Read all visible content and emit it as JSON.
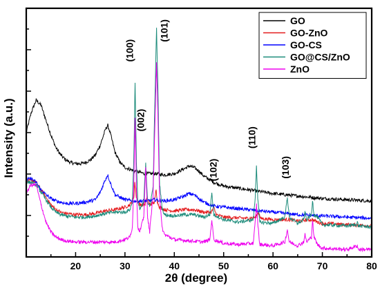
{
  "chart_data": {
    "type": "line",
    "xlabel": "2θ (degree)",
    "ylabel": "Intensity (a.u.)",
    "xlim": [
      10,
      80
    ],
    "ylim": [
      0,
      100
    ],
    "x_ticks": [
      20,
      30,
      40,
      50,
      60,
      70,
      80
    ],
    "y_tick_labels_shown": false,
    "legend_position": "top-right",
    "series": [
      {
        "name": "GO",
        "color": "#000000",
        "points": [
          [
            10,
            50
          ],
          [
            11,
            58
          ],
          [
            12,
            63
          ],
          [
            13,
            61
          ],
          [
            14,
            55
          ],
          [
            15,
            49
          ],
          [
            16,
            44
          ],
          [
            17,
            41
          ],
          [
            18,
            39
          ],
          [
            19,
            38
          ],
          [
            20,
            37.5
          ],
          [
            21,
            37.5
          ],
          [
            22,
            38
          ],
          [
            23,
            39
          ],
          [
            24,
            41
          ],
          [
            25,
            45
          ],
          [
            26,
            51
          ],
          [
            26.5,
            53
          ],
          [
            27,
            50
          ],
          [
            28,
            42
          ],
          [
            29,
            38
          ],
          [
            30,
            36
          ],
          [
            32,
            34.5
          ],
          [
            34,
            33.5
          ],
          [
            36,
            33.5
          ],
          [
            38,
            33
          ],
          [
            40,
            33.5
          ],
          [
            42,
            35.5
          ],
          [
            43,
            36.5
          ],
          [
            44,
            36
          ],
          [
            45,
            34.5
          ],
          [
            46,
            32.5
          ],
          [
            48,
            30
          ],
          [
            50,
            28.5
          ],
          [
            55,
            27
          ],
          [
            60,
            25.5
          ],
          [
            65,
            24.5
          ],
          [
            70,
            23.5
          ],
          [
            75,
            23
          ],
          [
            80,
            22.5
          ]
        ]
      },
      {
        "name": "GO-ZnO",
        "color": "#e41a1c",
        "points": [
          [
            10,
            30
          ],
          [
            11,
            31
          ],
          [
            12,
            30
          ],
          [
            13,
            27
          ],
          [
            14,
            24
          ],
          [
            15,
            21
          ],
          [
            16,
            19
          ],
          [
            17,
            18
          ],
          [
            18,
            17.5
          ],
          [
            20,
            17
          ],
          [
            22,
            17
          ],
          [
            24,
            17.5
          ],
          [
            26,
            18.5
          ],
          [
            28,
            19
          ],
          [
            30,
            20
          ],
          [
            31,
            21
          ],
          [
            31.8,
            24
          ],
          [
            32,
            30
          ],
          [
            32.3,
            24
          ],
          [
            33,
            21
          ],
          [
            34,
            21
          ],
          [
            34.5,
            24
          ],
          [
            35,
            21
          ],
          [
            36,
            22
          ],
          [
            36.3,
            27
          ],
          [
            36.6,
            22
          ],
          [
            37,
            20
          ],
          [
            38,
            19
          ],
          [
            40,
            18.5
          ],
          [
            42,
            19
          ],
          [
            44,
            19
          ],
          [
            46,
            18
          ],
          [
            47.5,
            18
          ],
          [
            48,
            20
          ],
          [
            48.5,
            17
          ],
          [
            50,
            16
          ],
          [
            55,
            15.5
          ],
          [
            56.5,
            16
          ],
          [
            57,
            18
          ],
          [
            57.5,
            15.5
          ],
          [
            60,
            15
          ],
          [
            63,
            15
          ],
          [
            65,
            14.5
          ],
          [
            68,
            15
          ],
          [
            69,
            14
          ],
          [
            70,
            13.5
          ],
          [
            75,
            13
          ],
          [
            80,
            12.5
          ]
        ]
      },
      {
        "name": "GO-CS",
        "color": "#0000ff",
        "points": [
          [
            10,
            31
          ],
          [
            11,
            31.5
          ],
          [
            12,
            30
          ],
          [
            13,
            27
          ],
          [
            14,
            25
          ],
          [
            15,
            23.5
          ],
          [
            16,
            22.5
          ],
          [
            17,
            22
          ],
          [
            18,
            21.5
          ],
          [
            20,
            21.5
          ],
          [
            22,
            22
          ],
          [
            24,
            23
          ],
          [
            25,
            26
          ],
          [
            26,
            31
          ],
          [
            26.5,
            33
          ],
          [
            27,
            30
          ],
          [
            28,
            25
          ],
          [
            30,
            23
          ],
          [
            32,
            22.5
          ],
          [
            34,
            22.5
          ],
          [
            36,
            23
          ],
          [
            38,
            22.5
          ],
          [
            40,
            23
          ],
          [
            42,
            24.5
          ],
          [
            43,
            25.5
          ],
          [
            44,
            25
          ],
          [
            45,
            23.5
          ],
          [
            46,
            22
          ],
          [
            48,
            20.5
          ],
          [
            50,
            20
          ],
          [
            55,
            19
          ],
          [
            60,
            18
          ],
          [
            65,
            17
          ],
          [
            70,
            16.5
          ],
          [
            75,
            16
          ],
          [
            80,
            15.5
          ]
        ]
      },
      {
        "name": "GO@CS/ZnO",
        "color": "#1b8b7a",
        "points": [
          [
            10,
            30
          ],
          [
            11,
            30
          ],
          [
            12,
            29
          ],
          [
            13,
            26
          ],
          [
            14,
            23
          ],
          [
            15,
            20
          ],
          [
            16,
            18
          ],
          [
            17,
            17
          ],
          [
            18,
            16.5
          ],
          [
            20,
            16
          ],
          [
            22,
            16
          ],
          [
            24,
            16.5
          ],
          [
            26,
            17.5
          ],
          [
            28,
            18
          ],
          [
            30,
            18
          ],
          [
            31,
            19
          ],
          [
            31.5,
            22
          ],
          [
            31.8,
            40
          ],
          [
            32.05,
            70
          ],
          [
            32.3,
            40
          ],
          [
            32.6,
            22
          ],
          [
            33,
            19
          ],
          [
            33.8,
            22
          ],
          [
            34.2,
            38
          ],
          [
            34.6,
            22
          ],
          [
            35,
            20
          ],
          [
            35.7,
            28
          ],
          [
            36.1,
            66
          ],
          [
            36.4,
            92
          ],
          [
            36.7,
            66
          ],
          [
            37,
            30
          ],
          [
            37.5,
            20
          ],
          [
            38,
            17
          ],
          [
            40,
            16.5
          ],
          [
            42,
            17
          ],
          [
            44,
            17
          ],
          [
            46,
            16
          ],
          [
            47.2,
            17
          ],
          [
            47.6,
            26
          ],
          [
            48,
            17
          ],
          [
            50,
            15
          ],
          [
            53,
            14
          ],
          [
            56,
            15
          ],
          [
            56.4,
            24
          ],
          [
            56.65,
            37
          ],
          [
            56.9,
            24
          ],
          [
            57.3,
            14
          ],
          [
            60,
            13.5
          ],
          [
            62.4,
            16
          ],
          [
            62.9,
            24
          ],
          [
            63.3,
            16
          ],
          [
            65,
            13.5
          ],
          [
            66.2,
            15
          ],
          [
            66.5,
            18
          ],
          [
            66.8,
            15
          ],
          [
            67.8,
            17
          ],
          [
            68,
            23
          ],
          [
            68.3,
            17
          ],
          [
            69,
            16
          ],
          [
            70,
            13
          ],
          [
            75,
            12.5
          ],
          [
            76.9,
            13
          ],
          [
            77.1,
            14
          ],
          [
            77.3,
            12.5
          ],
          [
            80,
            12
          ]
        ]
      },
      {
        "name": "ZnO",
        "color": "#ee00ee",
        "points": [
          [
            10,
            26
          ],
          [
            11,
            29
          ],
          [
            12,
            29
          ],
          [
            13,
            21
          ],
          [
            14,
            14
          ],
          [
            15,
            10
          ],
          [
            16,
            8
          ],
          [
            17,
            7
          ],
          [
            18,
            6.5
          ],
          [
            20,
            6
          ],
          [
            24,
            6
          ],
          [
            28,
            6
          ],
          [
            29,
            6.5
          ],
          [
            30,
            7
          ],
          [
            31,
            8
          ],
          [
            31.5,
            12
          ],
          [
            31.8,
            30
          ],
          [
            32.05,
            56
          ],
          [
            32.3,
            30
          ],
          [
            32.6,
            12
          ],
          [
            33,
            10
          ],
          [
            33.8,
            16
          ],
          [
            34.2,
            36
          ],
          [
            34.6,
            16
          ],
          [
            35,
            10
          ],
          [
            35.7,
            25
          ],
          [
            36.1,
            55
          ],
          [
            36.4,
            78
          ],
          [
            36.7,
            55
          ],
          [
            37,
            25
          ],
          [
            37.5,
            12
          ],
          [
            38,
            9
          ],
          [
            40,
            7
          ],
          [
            43,
            6.5
          ],
          [
            46,
            6
          ],
          [
            47.2,
            7
          ],
          [
            47.6,
            15
          ],
          [
            48,
            7
          ],
          [
            50,
            5.5
          ],
          [
            53,
            5
          ],
          [
            56,
            5.5
          ],
          [
            56.4,
            14
          ],
          [
            56.65,
            21
          ],
          [
            56.9,
            14
          ],
          [
            57.3,
            5
          ],
          [
            60,
            4.5
          ],
          [
            62.4,
            6
          ],
          [
            62.9,
            11
          ],
          [
            63.3,
            6
          ],
          [
            65,
            4.5
          ],
          [
            66.2,
            6
          ],
          [
            66.5,
            9
          ],
          [
            66.8,
            6
          ],
          [
            67.8,
            8
          ],
          [
            68,
            15
          ],
          [
            68.3,
            8
          ],
          [
            69,
            5
          ],
          [
            70,
            3.5
          ],
          [
            75,
            3
          ],
          [
            77.1,
            4.5
          ],
          [
            77.3,
            3
          ],
          [
            80,
            3
          ]
        ]
      }
    ],
    "annotations": [
      {
        "text": "(100)",
        "x": 31.6,
        "y": 83
      },
      {
        "text": "(002)",
        "x": 33.9,
        "y": 55
      },
      {
        "text": "(101)",
        "x": 38.6,
        "y": 91
      },
      {
        "text": "(102)",
        "x": 48.6,
        "y": 35
      },
      {
        "text": "(110)",
        "x": 56.4,
        "y": 48
      },
      {
        "text": "(103)",
        "x": 63.2,
        "y": 36
      }
    ]
  }
}
